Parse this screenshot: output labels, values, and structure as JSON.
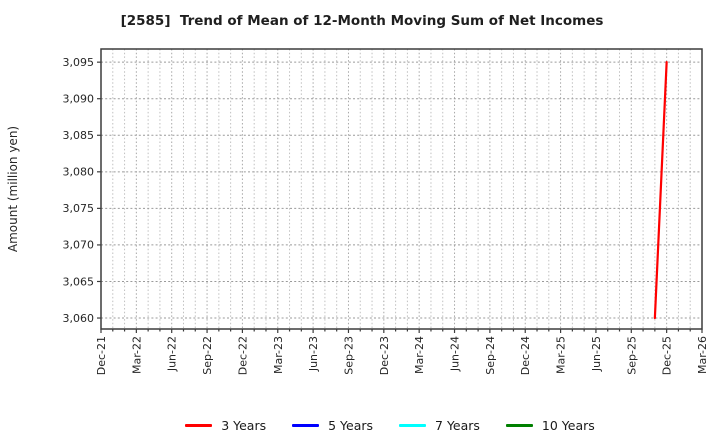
{
  "chart_data": {
    "type": "line",
    "title": "[2585]  Trend of Mean of 12-Month Moving Sum of Net Incomes",
    "ylabel": "Amount (million yen)",
    "xlabel": "",
    "x_tick_labels": [
      "Dec-21",
      "Mar-22",
      "Jun-22",
      "Sep-22",
      "Dec-22",
      "Mar-23",
      "Jun-23",
      "Sep-23",
      "Dec-23",
      "Mar-24",
      "Jun-24",
      "Sep-24",
      "Dec-24",
      "Mar-25",
      "Jun-25",
      "Sep-25",
      "Dec-25",
      "Mar-26"
    ],
    "x_tick_month_offsets": [
      0,
      3,
      6,
      9,
      12,
      15,
      18,
      21,
      24,
      27,
      30,
      33,
      36,
      39,
      42,
      45,
      48,
      51
    ],
    "x_months_total": 51,
    "x_range": [
      "Dec-21",
      "Mar-26"
    ],
    "y_ticks": [
      3060,
      3065,
      3070,
      3075,
      3080,
      3085,
      3090,
      3095
    ],
    "y_tick_labels": [
      "3,060",
      "3,065",
      "3,070",
      "3,075",
      "3,080",
      "3,085",
      "3,090",
      "3,095"
    ],
    "ylim": [
      3058.5,
      3096.8
    ],
    "grid": true,
    "grid_minor_x_interval_months": 1,
    "legend_position": "bottom-center",
    "series": [
      {
        "name": "3 Years",
        "color": "#ff0000",
        "points": [
          {
            "label": "Nov-25",
            "month_offset": 47,
            "value": 3060
          },
          {
            "label": "Dec-25",
            "month_offset": 48,
            "value": 3095
          }
        ]
      },
      {
        "name": "5 Years",
        "color": "#0000ff",
        "points": []
      },
      {
        "name": "7 Years",
        "color": "#00ffff",
        "points": []
      },
      {
        "name": "10 Years",
        "color": "#008000",
        "points": []
      }
    ],
    "colors": {
      "axis_frame": "#3c3c3c",
      "grid_horizontal": "#9a9a9a",
      "grid_vertical_major": "#a8a8a8",
      "grid_vertical_minor": "#c0c0c0",
      "tick_label": "#262626",
      "title_text": "#1f1f1f"
    }
  }
}
